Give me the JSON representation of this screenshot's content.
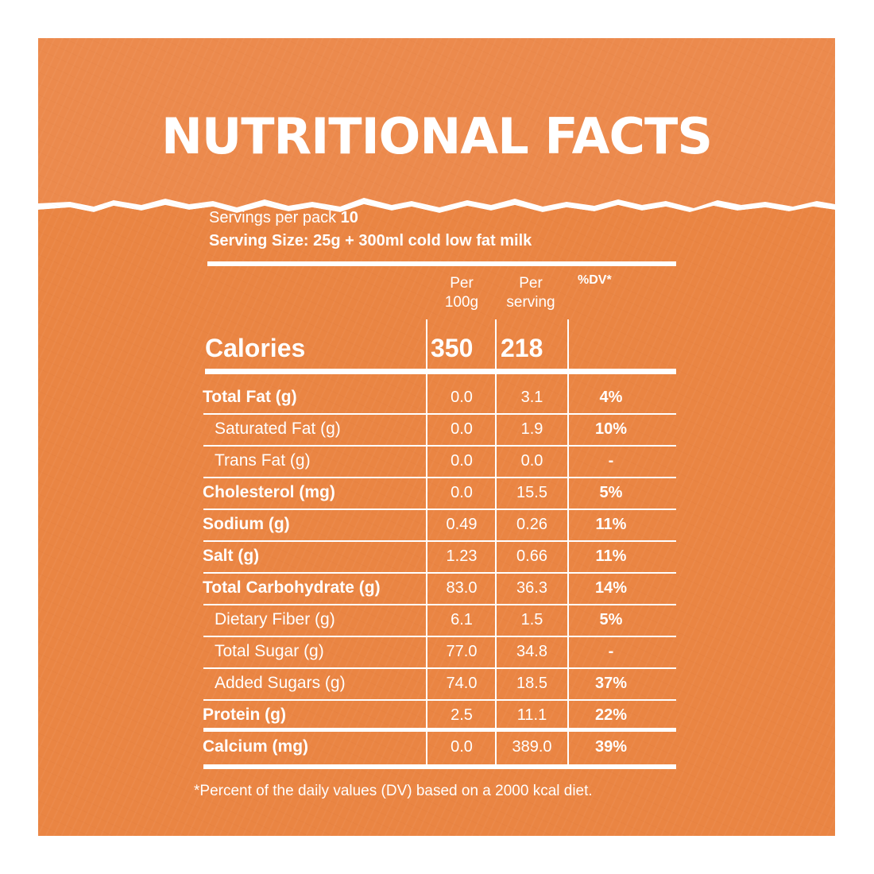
{
  "title": "NUTRITIONAL FACTS",
  "servings_label": "Servings per pack",
  "servings_value": "10",
  "serving_size": "Serving Size: 25g + 300ml cold low fat milk",
  "columns": {
    "per100g_line1": "Per",
    "per100g_line2": "100g",
    "perserving_line1": "Per",
    "perserving_line2": "serving",
    "dv": "%DV*"
  },
  "calories": {
    "label": "Calories",
    "per100g": "350",
    "perserving": "218"
  },
  "rows": [
    {
      "label": "Total Fat (g)",
      "per100g": "0.0",
      "perserving": "3.1",
      "dv": "4%"
    },
    {
      "label": "Saturated Fat (g)",
      "per100g": "0.0",
      "perserving": "1.9",
      "dv": "10%"
    },
    {
      "label": "Trans Fat (g)",
      "per100g": "0.0",
      "perserving": "0.0",
      "dv": "-"
    },
    {
      "label": "Cholesterol (mg)",
      "per100g": "0.0",
      "perserving": "15.5",
      "dv": "5%"
    },
    {
      "label": "Sodium (g)",
      "per100g": "0.49",
      "perserving": "0.26",
      "dv": "11%"
    },
    {
      "label": "Salt (g)",
      "per100g": "1.23",
      "perserving": "0.66",
      "dv": "11%"
    },
    {
      "label": "Total Carbohydrate (g)",
      "per100g": "83.0",
      "perserving": "36.3",
      "dv": "14%"
    },
    {
      "label": "Dietary Fiber (g)",
      "per100g": "6.1",
      "perserving": "1.5",
      "dv": "5%"
    },
    {
      "label": "Total Sugar (g)",
      "per100g": "77.0",
      "perserving": "34.8",
      "dv": "-"
    },
    {
      "label": "Added Sugars (g)",
      "per100g": "74.0",
      "perserving": "18.5",
      "dv": "37%"
    },
    {
      "label": "Protein (g)",
      "per100g": "2.5",
      "perserving": "11.1",
      "dv": "22%"
    },
    {
      "label": "Calcium (mg)",
      "per100g": "0.0",
      "perserving": "389.0",
      "dv": "39%"
    }
  ],
  "footnote": "*Percent of the daily values (DV) based on a 2000 kcal diet.",
  "colors": {
    "background": "#ea8543",
    "text": "#ffffff"
  }
}
